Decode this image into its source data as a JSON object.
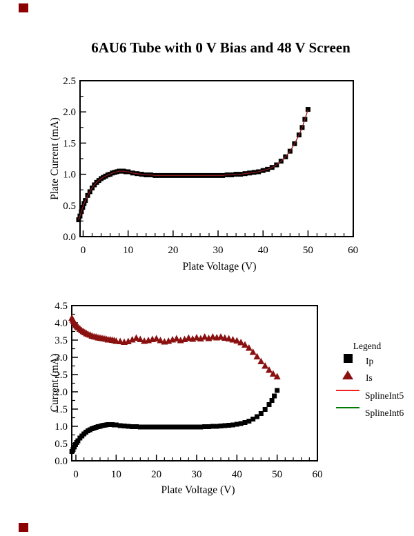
{
  "page": {
    "title": "6AU6 Tube with 0 V Bias and 48 V Screen",
    "bullet_color": "#8B0000"
  },
  "colors": {
    "ip_marker": "#000000",
    "is_marker": "#8B1111",
    "spline5": "#EE2222",
    "spline6": "#007B00",
    "chart_spline": "#8B1A1A",
    "axis": "#000000"
  },
  "legend": {
    "title": "Legend",
    "items": [
      {
        "label": "Ip",
        "marker": "square",
        "color": "#000000"
      },
      {
        "label": "Is",
        "marker": "triangle",
        "color": "#8B1111"
      },
      {
        "label": "SplineInt5",
        "marker": "line",
        "color": "#EE2222"
      },
      {
        "label": "SplineInt6",
        "marker": "line",
        "color": "#007B00"
      }
    ]
  },
  "chart_data": [
    {
      "type": "scatter",
      "title": "6AU6 Tube with 0 V Bias and 48 V Screen",
      "xlabel": "Plate Voltage (V)",
      "ylabel": "Plate Current (mA)",
      "xlim": [
        -1,
        60
      ],
      "ylim": [
        0,
        2.5
      ],
      "x_ticks": [
        0,
        10,
        20,
        30,
        40,
        50,
        60
      ],
      "x_tick_labels": [
        "0",
        "10",
        "20",
        "30",
        "40",
        "50",
        "60"
      ],
      "x_minor_step": 2,
      "y_ticks": [
        0,
        0.5,
        1,
        1.5,
        2,
        2.5
      ],
      "y_tick_labels": [
        "0.0",
        "0.5",
        "1.0",
        "1.5",
        "2.0",
        "2.5"
      ],
      "y_minor_step": 0.25,
      "grid": false,
      "series": [
        {
          "name": "Ip",
          "marker": "square",
          "color": "#000000",
          "has_spline": true,
          "spline_color": "#8B1A1A",
          "points": [
            [
              -1,
              0.27
            ],
            [
              -0.7,
              0.33
            ],
            [
              -0.4,
              0.4
            ],
            [
              -0.1,
              0.47
            ],
            [
              0.2,
              0.53
            ],
            [
              0.5,
              0.58
            ],
            [
              1,
              0.66
            ],
            [
              1.5,
              0.72
            ],
            [
              2,
              0.78
            ],
            [
              2.5,
              0.83
            ],
            [
              3,
              0.87
            ],
            [
              3.5,
              0.9
            ],
            [
              4,
              0.93
            ],
            [
              4.5,
              0.95
            ],
            [
              5,
              0.97
            ],
            [
              5.5,
              0.99
            ],
            [
              6,
              1.0
            ],
            [
              6.5,
              1.02
            ],
            [
              7,
              1.03
            ],
            [
              7.5,
              1.04
            ],
            [
              8,
              1.05
            ],
            [
              8.5,
              1.05
            ],
            [
              9,
              1.05
            ],
            [
              9.5,
              1.04
            ],
            [
              10,
              1.04
            ],
            [
              11,
              1.02
            ],
            [
              12,
              1.01
            ],
            [
              13,
              1.0
            ],
            [
              14,
              0.99
            ],
            [
              15,
              0.99
            ],
            [
              16,
              0.98
            ],
            [
              17,
              0.98
            ],
            [
              18,
              0.98
            ],
            [
              19,
              0.98
            ],
            [
              20,
              0.98
            ],
            [
              21,
              0.98
            ],
            [
              22,
              0.98
            ],
            [
              23,
              0.98
            ],
            [
              24,
              0.98
            ],
            [
              25,
              0.98
            ],
            [
              26,
              0.98
            ],
            [
              27,
              0.98
            ],
            [
              28,
              0.98
            ],
            [
              29,
              0.98
            ],
            [
              30,
              0.98
            ],
            [
              31,
              0.98
            ],
            [
              32,
              0.99
            ],
            [
              33,
              0.99
            ],
            [
              34,
              1.0
            ],
            [
              35,
              1.0
            ],
            [
              36,
              1.01
            ],
            [
              37,
              1.02
            ],
            [
              38,
              1.03
            ],
            [
              39,
              1.04
            ],
            [
              40,
              1.06
            ],
            [
              41,
              1.08
            ],
            [
              42,
              1.11
            ],
            [
              43,
              1.15
            ],
            [
              44,
              1.21
            ],
            [
              45,
              1.28
            ],
            [
              46,
              1.37
            ],
            [
              47,
              1.49
            ],
            [
              48,
              1.63
            ],
            [
              48.7,
              1.75
            ],
            [
              49.3,
              1.88
            ],
            [
              50,
              2.04
            ]
          ]
        }
      ]
    },
    {
      "type": "scatter",
      "title": "",
      "xlabel": "Plate Voltage (V)",
      "ylabel": "Current (mA)",
      "xlim": [
        -1,
        60
      ],
      "ylim": [
        0,
        4.5
      ],
      "x_ticks": [
        0,
        10,
        20,
        30,
        40,
        50,
        60
      ],
      "x_tick_labels": [
        "0",
        "10",
        "20",
        "30",
        "40",
        "50",
        "60"
      ],
      "x_minor_step": 2,
      "y_ticks": [
        0,
        0.5,
        1,
        1.5,
        2,
        2.5,
        3,
        3.5,
        4,
        4.5
      ],
      "y_tick_labels": [
        "0.0",
        "0.5",
        "1.0",
        "1.5",
        "2.0",
        "2.5",
        "3.0",
        "3.5",
        "4.0",
        "4.5"
      ],
      "y_minor_step": 0.25,
      "grid": false,
      "series": [
        {
          "name": "Ip",
          "marker": "square",
          "color": "#000000",
          "has_spline": false,
          "points": [
            [
              -1,
              0.27
            ],
            [
              -0.7,
              0.33
            ],
            [
              -0.4,
              0.4
            ],
            [
              -0.1,
              0.47
            ],
            [
              0.2,
              0.53
            ],
            [
              0.5,
              0.58
            ],
            [
              1,
              0.66
            ],
            [
              1.5,
              0.72
            ],
            [
              2,
              0.78
            ],
            [
              2.5,
              0.83
            ],
            [
              3,
              0.87
            ],
            [
              3.5,
              0.9
            ],
            [
              4,
              0.93
            ],
            [
              4.5,
              0.95
            ],
            [
              5,
              0.97
            ],
            [
              5.5,
              0.99
            ],
            [
              6,
              1.0
            ],
            [
              6.5,
              1.02
            ],
            [
              7,
              1.03
            ],
            [
              7.5,
              1.04
            ],
            [
              8,
              1.05
            ],
            [
              8.5,
              1.05
            ],
            [
              9,
              1.05
            ],
            [
              9.5,
              1.04
            ],
            [
              10,
              1.04
            ],
            [
              11,
              1.02
            ],
            [
              12,
              1.01
            ],
            [
              13,
              1.0
            ],
            [
              14,
              0.99
            ],
            [
              15,
              0.99
            ],
            [
              16,
              0.98
            ],
            [
              17,
              0.98
            ],
            [
              18,
              0.98
            ],
            [
              19,
              0.98
            ],
            [
              20,
              0.98
            ],
            [
              21,
              0.98
            ],
            [
              22,
              0.98
            ],
            [
              23,
              0.98
            ],
            [
              24,
              0.98
            ],
            [
              25,
              0.98
            ],
            [
              26,
              0.98
            ],
            [
              27,
              0.98
            ],
            [
              28,
              0.98
            ],
            [
              29,
              0.98
            ],
            [
              30,
              0.98
            ],
            [
              31,
              0.98
            ],
            [
              32,
              0.99
            ],
            [
              33,
              0.99
            ],
            [
              34,
              1.0
            ],
            [
              35,
              1.0
            ],
            [
              36,
              1.01
            ],
            [
              37,
              1.02
            ],
            [
              38,
              1.03
            ],
            [
              39,
              1.04
            ],
            [
              40,
              1.06
            ],
            [
              41,
              1.08
            ],
            [
              42,
              1.11
            ],
            [
              43,
              1.15
            ],
            [
              44,
              1.21
            ],
            [
              45,
              1.28
            ],
            [
              46,
              1.37
            ],
            [
              47,
              1.49
            ],
            [
              48,
              1.63
            ],
            [
              48.7,
              1.75
            ],
            [
              49.3,
              1.88
            ],
            [
              50,
              2.04
            ]
          ]
        },
        {
          "name": "Is",
          "marker": "triangle",
          "color": "#8B1111",
          "has_spline": false,
          "points": [
            [
              -1,
              4.15
            ],
            [
              -0.8,
              4.1
            ],
            [
              -0.6,
              4.06
            ],
            [
              -0.4,
              4.02
            ],
            [
              -0.2,
              3.98
            ],
            [
              0,
              3.94
            ],
            [
              0.3,
              3.9
            ],
            [
              0.6,
              3.87
            ],
            [
              1,
              3.83
            ],
            [
              1.4,
              3.79
            ],
            [
              1.8,
              3.76
            ],
            [
              2.2,
              3.73
            ],
            [
              2.6,
              3.7
            ],
            [
              3,
              3.68
            ],
            [
              3.5,
              3.66
            ],
            [
              4,
              3.63
            ],
            [
              4.5,
              3.61
            ],
            [
              5,
              3.6
            ],
            [
              5.5,
              3.58
            ],
            [
              6,
              3.57
            ],
            [
              6.5,
              3.56
            ],
            [
              7,
              3.55
            ],
            [
              7.5,
              3.54
            ],
            [
              8,
              3.52
            ],
            [
              8.5,
              3.52
            ],
            [
              9,
              3.51
            ],
            [
              9.5,
              3.5
            ],
            [
              10,
              3.48
            ],
            [
              11,
              3.47
            ],
            [
              12,
              3.45
            ],
            [
              13,
              3.47
            ],
            [
              14,
              3.52
            ],
            [
              15,
              3.57
            ],
            [
              16,
              3.53
            ],
            [
              17,
              3.48
            ],
            [
              18,
              3.5
            ],
            [
              19,
              3.53
            ],
            [
              20,
              3.55
            ],
            [
              21,
              3.5
            ],
            [
              22,
              3.46
            ],
            [
              23,
              3.48
            ],
            [
              24,
              3.52
            ],
            [
              25,
              3.55
            ],
            [
              26,
              3.5
            ],
            [
              27,
              3.53
            ],
            [
              28,
              3.57
            ],
            [
              29,
              3.54
            ],
            [
              30,
              3.58
            ],
            [
              31,
              3.55
            ],
            [
              32,
              3.6
            ],
            [
              33,
              3.56
            ],
            [
              34,
              3.6
            ],
            [
              35,
              3.58
            ],
            [
              36,
              3.6
            ],
            [
              37,
              3.57
            ],
            [
              38,
              3.55
            ],
            [
              39,
              3.52
            ],
            [
              40,
              3.49
            ],
            [
              41,
              3.44
            ],
            [
              42,
              3.37
            ],
            [
              43,
              3.28
            ],
            [
              44,
              3.16
            ],
            [
              45,
              3.03
            ],
            [
              46,
              2.89
            ],
            [
              47,
              2.76
            ],
            [
              48,
              2.64
            ],
            [
              49,
              2.53
            ],
            [
              50,
              2.45
            ]
          ]
        }
      ]
    }
  ]
}
